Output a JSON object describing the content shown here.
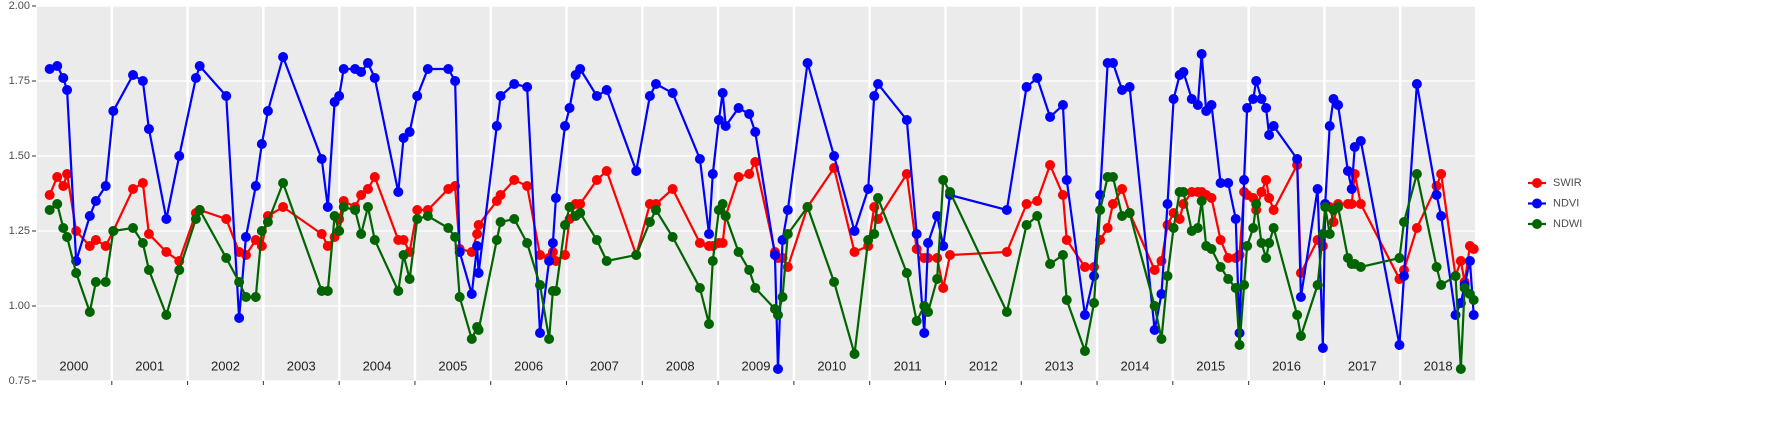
{
  "chart_data": {
    "type": "line",
    "panels": [
      "2000",
      "2001",
      "2002",
      "2003",
      "2004",
      "2005",
      "2006",
      "2007",
      "2008",
      "2009",
      "2010",
      "2011",
      "2012",
      "2013",
      "2014",
      "2015",
      "2016",
      "2017",
      "2018"
    ],
    "xlim": [
      2000,
      2019
    ],
    "ylim": [
      0.75,
      2.0
    ],
    "yticks": [
      {
        "value": 0.75,
        "label": "0.75"
      },
      {
        "value": 1.0,
        "label": "1.00"
      },
      {
        "value": 1.25,
        "label": "1.25"
      },
      {
        "value": 1.5,
        "label": "1.50"
      },
      {
        "value": 1.75,
        "label": "1.75"
      },
      {
        "value": 2.0,
        "label": "2.00"
      }
    ],
    "grid": true,
    "legend": "right",
    "x": [
      2000.18,
      2000.28,
      2000.36,
      2000.41,
      2000.53,
      2000.71,
      2000.79,
      2000.92,
      2001.02,
      2001.28,
      2001.41,
      2001.49,
      2001.72,
      2001.89,
      2002.11,
      2002.16,
      2002.51,
      2002.68,
      2002.77,
      2002.9,
      2002.98,
      2003.06,
      2003.26,
      2003.77,
      2003.85,
      2003.94,
      2004.0,
      2004.06,
      2004.21,
      2004.29,
      2004.38,
      2004.47,
      2004.78,
      2004.85,
      2004.93,
      2005.03,
      2005.17,
      2005.44,
      2005.53,
      2005.59,
      2005.75,
      2005.82,
      2005.84,
      2006.08,
      2006.13,
      2006.31,
      2006.48,
      2006.65,
      2006.77,
      2006.82,
      2006.86,
      2006.98,
      2007.04,
      2007.12,
      2007.18,
      2007.4,
      2007.53,
      2007.92,
      2008.1,
      2008.18,
      2008.4,
      2008.76,
      2008.88,
      2008.93,
      2009.01,
      2009.06,
      2009.1,
      2009.27,
      2009.41,
      2009.49,
      2009.75,
      2009.79,
      2009.85,
      2009.92,
      2010.18,
      2010.53,
      2010.8,
      2010.98,
      2011.06,
      2011.11,
      2011.49,
      2011.62,
      2011.72,
      2011.77,
      2011.89,
      2011.97,
      2012.06,
      2012.81,
      2013.07,
      2013.21,
      2013.38,
      2013.55,
      2013.6,
      2013.84,
      2013.96,
      2014.04,
      2014.14,
      2014.21,
      2014.33,
      2014.43,
      2014.76,
      2014.85,
      2014.93,
      2015.01,
      2015.09,
      2015.14,
      2015.25,
      2015.33,
      2015.38,
      2015.44,
      2015.51,
      2015.63,
      2015.73,
      2015.83,
      2015.88,
      2015.94,
      2015.98,
      2016.06,
      2016.1,
      2016.17,
      2016.23,
      2016.27,
      2016.33,
      2016.64,
      2016.69,
      2016.91,
      2016.98,
      2017.01,
      2017.07,
      2017.12,
      2017.18,
      2017.31,
      2017.36,
      2017.4,
      2017.48,
      2017.99,
      2018.05,
      2018.22,
      2018.48,
      2018.54,
      2018.73,
      2018.8,
      2018.85,
      2018.92,
      2018.97
    ],
    "series": [
      {
        "name": "SWIR",
        "color": "#ff0000",
        "values": [
          1.37,
          1.43,
          1.4,
          1.44,
          1.25,
          1.2,
          1.22,
          1.2,
          1.25,
          1.39,
          1.41,
          1.24,
          1.18,
          1.15,
          1.31,
          1.32,
          1.29,
          1.18,
          1.17,
          1.22,
          1.2,
          1.3,
          1.33,
          1.24,
          1.2,
          1.23,
          1.29,
          1.35,
          1.33,
          1.37,
          1.39,
          1.43,
          1.22,
          1.22,
          1.18,
          1.32,
          1.32,
          1.39,
          1.4,
          1.19,
          1.18,
          1.24,
          1.27,
          1.35,
          1.37,
          1.42,
          1.4,
          1.17,
          1.16,
          1.18,
          1.15,
          1.17,
          1.29,
          1.34,
          1.34,
          1.42,
          1.45,
          1.17,
          1.34,
          1.34,
          1.39,
          1.21,
          1.2,
          1.2,
          1.21,
          1.21,
          1.3,
          1.43,
          1.44,
          1.48,
          1.18,
          1.16,
          1.16,
          1.13,
          1.33,
          1.46,
          1.18,
          1.2,
          1.33,
          1.29,
          1.44,
          1.19,
          1.16,
          1.16,
          1.16,
          1.06,
          1.17,
          1.18,
          1.34,
          1.35,
          1.47,
          1.37,
          1.22,
          1.13,
          1.13,
          1.22,
          1.26,
          1.34,
          1.39,
          1.31,
          1.12,
          1.15,
          1.27,
          1.31,
          1.29,
          1.34,
          1.38,
          1.38,
          1.38,
          1.37,
          1.36,
          1.22,
          1.16,
          1.16,
          1.17,
          1.38,
          1.37,
          1.36,
          1.32,
          1.38,
          1.42,
          1.36,
          1.32,
          1.47,
          1.11,
          1.22,
          1.2,
          1.34,
          1.33,
          1.28,
          1.34,
          1.34,
          1.34,
          1.44,
          1.34,
          1.09,
          1.12,
          1.26,
          1.4,
          1.44,
          1.1,
          1.15,
          1.08,
          1.2,
          1.19
        ]
      },
      {
        "name": "NDVI",
        "color": "#0000ff",
        "values": [
          1.79,
          1.8,
          1.76,
          1.72,
          1.15,
          1.3,
          1.35,
          1.4,
          1.65,
          1.77,
          1.75,
          1.59,
          1.29,
          1.5,
          1.76,
          1.8,
          1.7,
          0.96,
          1.23,
          1.4,
          1.54,
          1.65,
          1.83,
          1.49,
          1.33,
          1.68,
          1.7,
          1.79,
          1.79,
          1.78,
          1.81,
          1.76,
          1.38,
          1.56,
          1.58,
          1.7,
          1.79,
          1.79,
          1.75,
          1.18,
          1.04,
          1.2,
          1.11,
          1.6,
          1.7,
          1.74,
          1.73,
          0.91,
          1.15,
          1.21,
          1.36,
          1.6,
          1.66,
          1.77,
          1.79,
          1.7,
          1.72,
          1.45,
          1.7,
          1.74,
          1.71,
          1.49,
          1.24,
          1.44,
          1.62,
          1.71,
          1.6,
          1.66,
          1.64,
          1.58,
          1.17,
          0.79,
          1.22,
          1.32,
          1.81,
          1.5,
          1.25,
          1.39,
          1.7,
          1.74,
          1.62,
          1.24,
          0.91,
          1.21,
          1.3,
          1.2,
          1.37,
          1.32,
          1.73,
          1.76,
          1.63,
          1.67,
          1.42,
          0.97,
          1.1,
          1.37,
          1.81,
          1.81,
          1.72,
          1.73,
          0.92,
          1.04,
          1.34,
          1.69,
          1.77,
          1.78,
          1.69,
          1.67,
          1.84,
          1.65,
          1.67,
          1.41,
          1.41,
          1.29,
          0.91,
          1.42,
          1.66,
          1.69,
          1.75,
          1.69,
          1.66,
          1.57,
          1.6,
          1.49,
          1.03,
          1.39,
          0.86,
          1.34,
          1.6,
          1.69,
          1.67,
          1.45,
          1.39,
          1.53,
          1.55,
          0.87,
          1.1,
          1.74,
          1.37,
          1.3,
          0.97,
          1.01,
          1.07,
          1.15,
          0.97
        ]
      },
      {
        "name": "NDWI",
        "color": "#006400",
        "values": [
          1.32,
          1.34,
          1.26,
          1.23,
          1.11,
          0.98,
          1.08,
          1.08,
          1.25,
          1.26,
          1.21,
          1.12,
          0.97,
          1.12,
          1.29,
          1.32,
          1.16,
          1.08,
          1.03,
          1.03,
          1.25,
          1.28,
          1.41,
          1.05,
          1.05,
          1.3,
          1.25,
          1.33,
          1.32,
          1.24,
          1.33,
          1.22,
          1.05,
          1.17,
          1.09,
          1.29,
          1.3,
          1.26,
          1.23,
          1.03,
          0.89,
          0.93,
          0.92,
          1.22,
          1.28,
          1.29,
          1.21,
          1.07,
          0.89,
          1.05,
          1.05,
          1.27,
          1.33,
          1.3,
          1.31,
          1.22,
          1.15,
          1.17,
          1.28,
          1.32,
          1.23,
          1.06,
          0.94,
          1.15,
          1.32,
          1.34,
          1.3,
          1.18,
          1.12,
          1.06,
          0.99,
          0.97,
          1.03,
          1.24,
          1.33,
          1.08,
          0.84,
          1.22,
          1.24,
          1.36,
          1.11,
          0.95,
          1.0,
          0.98,
          1.09,
          1.42,
          1.38,
          0.98,
          1.27,
          1.3,
          1.14,
          1.17,
          1.02,
          0.85,
          1.01,
          1.32,
          1.43,
          1.43,
          1.3,
          1.31,
          1.0,
          0.89,
          1.1,
          1.26,
          1.38,
          1.38,
          1.25,
          1.26,
          1.35,
          1.2,
          1.19,
          1.13,
          1.09,
          1.06,
          0.87,
          1.07,
          1.2,
          1.26,
          1.34,
          1.21,
          1.16,
          1.21,
          1.26,
          0.97,
          0.9,
          1.07,
          1.24,
          1.33,
          1.24,
          1.32,
          1.33,
          1.16,
          1.14,
          1.14,
          1.13,
          1.16,
          1.28,
          1.44,
          1.13,
          1.07,
          1.1,
          0.79,
          1.06,
          1.04,
          1.02
        ]
      }
    ]
  }
}
